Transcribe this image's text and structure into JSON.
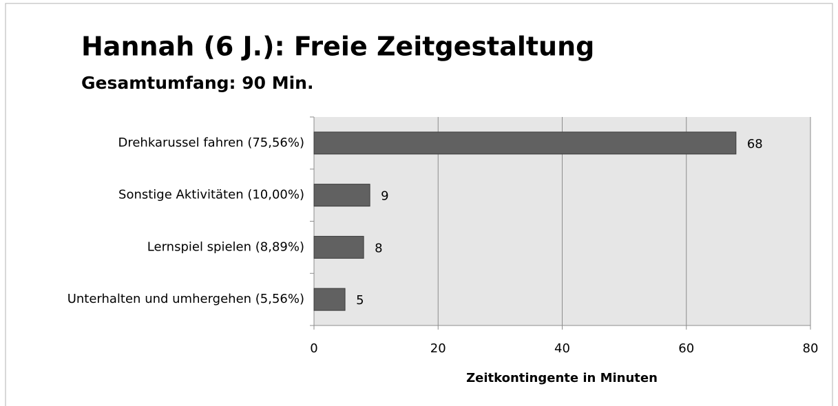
{
  "chart_data": {
    "type": "hbar",
    "title": "Hannah (6 J.): Freie Zeitgestaltung",
    "subtitle": "Gesamtumfang: 90 Min.",
    "x_label": "Zeitkontingente in Minuten",
    "categories": [
      "Drehkarussel fahren (75,56%)",
      "Sonstige Aktivitäten (10,00%)",
      "Lernspiel spielen (8,89%)",
      "Unterhalten und umhergehen (5,56%)"
    ],
    "values": [
      68,
      9,
      8,
      5
    ],
    "color": "#616161",
    "xlim": [
      0,
      80
    ],
    "xticks": [
      0,
      20,
      40,
      60,
      80
    ],
    "grid": true
  }
}
